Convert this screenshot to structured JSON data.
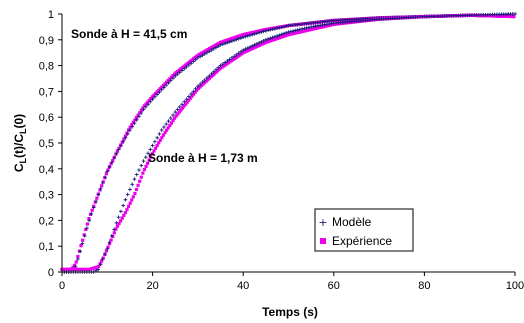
{
  "chart_data": {
    "type": "scatter",
    "title": "",
    "xlabel": "Temps (s)",
    "ylabel_main": "C",
    "ylabel_sub1": "L",
    "ylabel_mid": "(t)/C",
    "ylabel_sub2": "L",
    "ylabel_end": "(0)",
    "xlim": [
      0,
      100
    ],
    "ylim": [
      0,
      1
    ],
    "x_ticks": [
      "0",
      "20",
      "40",
      "60",
      "80",
      "100"
    ],
    "y_ticks": [
      "0",
      "0,1",
      "0,2",
      "0,3",
      "0,4",
      "0,5",
      "0,6",
      "0,7",
      "0,8",
      "0,9",
      "1"
    ],
    "grid": false,
    "legend_position": "bottom-right",
    "legend": [
      {
        "label": "Modèle",
        "marker": "+",
        "color": "#1a1a7a"
      },
      {
        "label": "Expérience",
        "marker": "square",
        "color": "#ee00ee"
      }
    ],
    "annotations": [
      {
        "text": "Sonde à H = 41,5 cm",
        "x": 2,
        "y": 0.925
      },
      {
        "text": "Sonde à H = 1,73 m",
        "x": 19,
        "y": 0.43
      }
    ],
    "curves": [
      {
        "probe": "Sonde à H = 41,5 cm",
        "model": {
          "x": [
            0,
            2,
            3,
            4,
            6,
            8,
            10,
            12,
            15,
            18,
            20,
            25,
            30,
            35,
            40,
            45,
            50,
            55,
            60,
            70,
            80,
            90,
            100
          ],
          "y": [
            0,
            0,
            0.02,
            0.08,
            0.2,
            0.3,
            0.39,
            0.46,
            0.55,
            0.63,
            0.67,
            0.76,
            0.83,
            0.88,
            0.91,
            0.935,
            0.955,
            0.965,
            0.975,
            0.985,
            0.99,
            0.995,
            1.0
          ]
        },
        "experiment": {
          "x": [
            0,
            2,
            3,
            4,
            6,
            8,
            10,
            12,
            15,
            18,
            20,
            25,
            30,
            35,
            40,
            45,
            50,
            55,
            60,
            70,
            80,
            90,
            100
          ],
          "y": [
            0.01,
            0.01,
            0.03,
            0.09,
            0.21,
            0.3,
            0.39,
            0.46,
            0.56,
            0.64,
            0.68,
            0.77,
            0.84,
            0.89,
            0.92,
            0.94,
            0.955,
            0.965,
            0.975,
            0.985,
            0.99,
            0.995,
            0.99
          ]
        }
      },
      {
        "probe": "Sonde à H = 1,73 m",
        "model": {
          "x": [
            0,
            6,
            7,
            8,
            9,
            10,
            12,
            14,
            16,
            18,
            20,
            22,
            25,
            30,
            35,
            40,
            45,
            50,
            55,
            60,
            70,
            80,
            90,
            100
          ],
          "y": [
            0,
            0,
            0,
            0.01,
            0.05,
            0.09,
            0.19,
            0.28,
            0.36,
            0.43,
            0.49,
            0.55,
            0.62,
            0.72,
            0.8,
            0.86,
            0.9,
            0.93,
            0.95,
            0.965,
            0.98,
            0.99,
            0.995,
            1.0
          ]
        },
        "experiment": {
          "x": [
            0,
            6,
            8,
            9,
            10,
            11,
            12,
            14,
            16,
            18,
            20,
            22,
            25,
            30,
            35,
            40,
            45,
            50,
            55,
            60,
            70,
            80,
            90,
            100
          ],
          "y": [
            0.01,
            0.01,
            0.02,
            0.05,
            0.09,
            0.13,
            0.17,
            0.23,
            0.3,
            0.39,
            0.46,
            0.52,
            0.6,
            0.71,
            0.79,
            0.85,
            0.89,
            0.92,
            0.94,
            0.96,
            0.98,
            0.99,
            0.995,
            0.99
          ]
        }
      }
    ]
  }
}
